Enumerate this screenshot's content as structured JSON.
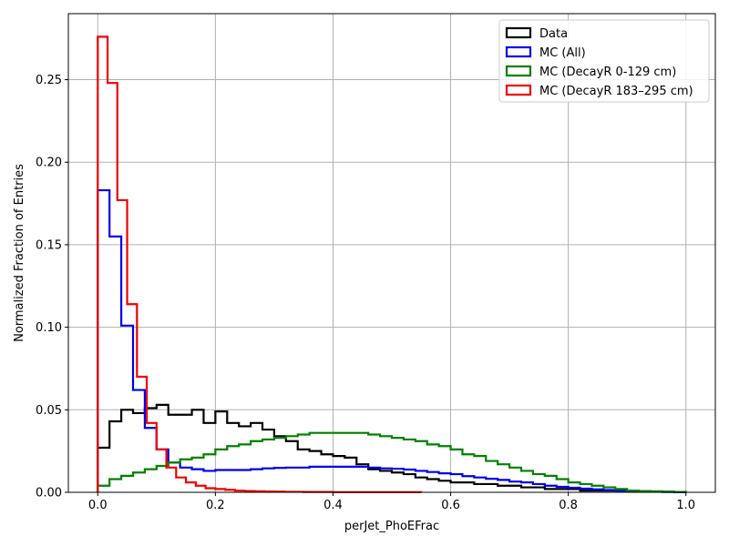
{
  "chart_data": {
    "type": "histogram-step",
    "xlabel": "perJet_PhoEFrac",
    "ylabel": "Normalized Fraction of Entries",
    "xlim": [
      -0.05,
      1.05
    ],
    "ylim": [
      0,
      0.29
    ],
    "x_ticks": [
      0.0,
      0.2,
      0.4,
      0.6,
      0.8,
      1.0
    ],
    "x_tick_labels": [
      "0.0",
      "0.2",
      "0.4",
      "0.6",
      "0.8",
      "1.0"
    ],
    "y_ticks": [
      0.0,
      0.05,
      0.1,
      0.15,
      0.2,
      0.25
    ],
    "y_tick_labels": [
      "0.00",
      "0.05",
      "0.10",
      "0.15",
      "0.20",
      "0.25"
    ],
    "grid": true,
    "legend_position": "top-right",
    "series": [
      {
        "name": "Data",
        "color": "#000000",
        "bin_edges": [
          0.0,
          0.02,
          0.04,
          0.06,
          0.08,
          0.1,
          0.12,
          0.14,
          0.16,
          0.18,
          0.2,
          0.22,
          0.24,
          0.26,
          0.28,
          0.3,
          0.32,
          0.34,
          0.36,
          0.38,
          0.4,
          0.42,
          0.44,
          0.46,
          0.48,
          0.5,
          0.52,
          0.54,
          0.56,
          0.58,
          0.6,
          0.62,
          0.64,
          0.66,
          0.68,
          0.7,
          0.72,
          0.74,
          0.76,
          0.78,
          0.8,
          0.82,
          0.84,
          0.86,
          0.88,
          0.9,
          0.92,
          0.94,
          0.96,
          0.98,
          1.0
        ],
        "values": [
          0.027,
          0.043,
          0.05,
          0.048,
          0.051,
          0.053,
          0.047,
          0.047,
          0.05,
          0.042,
          0.049,
          0.042,
          0.04,
          0.042,
          0.038,
          0.034,
          0.031,
          0.026,
          0.025,
          0.023,
          0.022,
          0.021,
          0.017,
          0.014,
          0.013,
          0.012,
          0.011,
          0.009,
          0.008,
          0.007,
          0.006,
          0.006,
          0.005,
          0.005,
          0.004,
          0.004,
          0.003,
          0.003,
          0.002,
          0.002,
          0.002,
          0.001,
          0.001,
          0.001,
          0.001,
          0.001,
          0.0005,
          0.0005,
          0.0003,
          0.0002
        ]
      },
      {
        "name": "MC (All)",
        "color": "#0000ee",
        "bin_edges": [
          0.0,
          0.02,
          0.04,
          0.06,
          0.08,
          0.1,
          0.12,
          0.14,
          0.16,
          0.18,
          0.2,
          0.22,
          0.24,
          0.26,
          0.28,
          0.3,
          0.32,
          0.34,
          0.36,
          0.38,
          0.4,
          0.42,
          0.44,
          0.46,
          0.48,
          0.5,
          0.52,
          0.54,
          0.56,
          0.58,
          0.6,
          0.62,
          0.64,
          0.66,
          0.68,
          0.7,
          0.72,
          0.74,
          0.76,
          0.78,
          0.8,
          0.82,
          0.84,
          0.86,
          0.88,
          0.9,
          0.92,
          0.94,
          0.96,
          0.98,
          1.0
        ],
        "values": [
          0.183,
          0.155,
          0.101,
          0.062,
          0.039,
          0.026,
          0.018,
          0.015,
          0.014,
          0.013,
          0.0135,
          0.0135,
          0.0135,
          0.014,
          0.0145,
          0.0148,
          0.015,
          0.015,
          0.0155,
          0.0155,
          0.0155,
          0.0155,
          0.0155,
          0.015,
          0.0145,
          0.0143,
          0.0138,
          0.013,
          0.0123,
          0.0115,
          0.011,
          0.0098,
          0.009,
          0.0082,
          0.0075,
          0.0065,
          0.006,
          0.005,
          0.004,
          0.0033,
          0.0028,
          0.0022,
          0.0018,
          0.0014,
          0.001,
          0.0008,
          0.0005,
          0.0004,
          0.0002,
          0.0001
        ]
      },
      {
        "name": "MC (DecayR 0-129 cm)",
        "color": "#008000",
        "bin_edges": [
          0.0,
          0.02,
          0.04,
          0.06,
          0.08,
          0.1,
          0.12,
          0.14,
          0.16,
          0.18,
          0.2,
          0.22,
          0.24,
          0.26,
          0.28,
          0.3,
          0.32,
          0.34,
          0.36,
          0.38,
          0.4,
          0.42,
          0.44,
          0.46,
          0.48,
          0.5,
          0.52,
          0.54,
          0.56,
          0.58,
          0.6,
          0.62,
          0.64,
          0.66,
          0.68,
          0.7,
          0.72,
          0.74,
          0.76,
          0.78,
          0.8,
          0.82,
          0.84,
          0.86,
          0.88,
          0.9,
          0.92,
          0.94,
          0.96,
          0.98,
          1.0
        ],
        "values": [
          0.004,
          0.008,
          0.01,
          0.012,
          0.014,
          0.016,
          0.018,
          0.02,
          0.021,
          0.023,
          0.026,
          0.028,
          0.029,
          0.031,
          0.032,
          0.033,
          0.034,
          0.035,
          0.036,
          0.036,
          0.036,
          0.036,
          0.036,
          0.035,
          0.034,
          0.033,
          0.032,
          0.031,
          0.029,
          0.028,
          0.026,
          0.023,
          0.022,
          0.019,
          0.017,
          0.015,
          0.013,
          0.011,
          0.01,
          0.008,
          0.006,
          0.005,
          0.004,
          0.003,
          0.002,
          0.001,
          0.0008,
          0.0006,
          0.0004,
          0.0002
        ]
      },
      {
        "name": "MC (DecayR 183–295 cm)",
        "color": "#ee0000",
        "bin_edges": [
          0.0,
          0.0167,
          0.0333,
          0.05,
          0.0667,
          0.0833,
          0.1,
          0.1167,
          0.1333,
          0.15,
          0.1667,
          0.1833,
          0.2,
          0.2167,
          0.2333,
          0.25,
          0.2667,
          0.2833,
          0.3,
          0.3167,
          0.3333,
          0.35,
          0.3667,
          0.3833,
          0.4,
          0.4167,
          0.4333,
          0.45,
          0.4667,
          0.4833,
          0.5,
          0.5167,
          0.5333,
          0.55
        ],
        "values": [
          0.276,
          0.248,
          0.177,
          0.114,
          0.07,
          0.042,
          0.026,
          0.015,
          0.009,
          0.006,
          0.004,
          0.0025,
          0.002,
          0.0015,
          0.001,
          0.0008,
          0.0006,
          0.0005,
          0.0004,
          0.0003,
          0.0003,
          0.0002,
          0.0002,
          0.0002,
          0.0001,
          0.0001,
          0.0001,
          0.0001,
          0.0001,
          0.0001,
          0.0001,
          0.0001,
          0.0001
        ]
      }
    ]
  }
}
